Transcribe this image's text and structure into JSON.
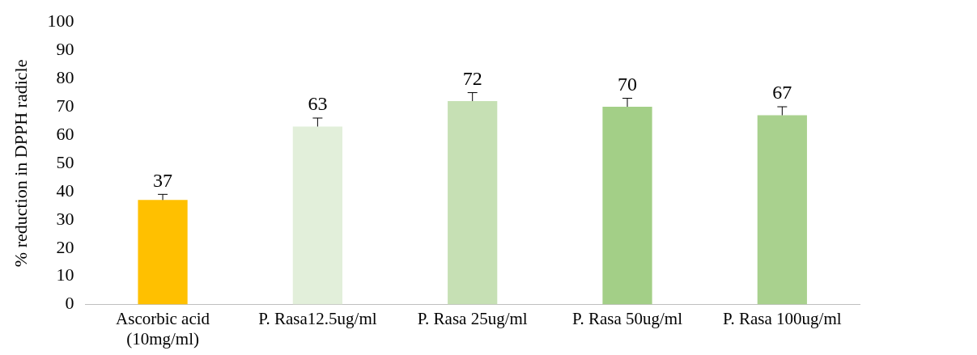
{
  "chart_data": {
    "type": "bar",
    "ylabel": "% reduction in DPPH radicle",
    "categories": [
      "Ascorbic acid (10mg/ml)",
      "P. Rasa12.5ug/ml",
      "P. Rasa 25ug/ml",
      "P. Rasa 50ug/ml",
      "P. Rasa 100ug/ml"
    ],
    "values": [
      37,
      63,
      72,
      70,
      67
    ],
    "colors": [
      "#ffc000",
      "#e2efda",
      "#c6e0b4",
      "#a3cf87",
      "#a9d18e"
    ],
    "errors": [
      [
        37,
        39
      ],
      [
        63,
        66
      ],
      [
        72,
        75
      ],
      [
        70,
        73
      ],
      [
        67,
        70
      ]
    ],
    "ylim": [
      0,
      100
    ],
    "yticks": [
      0,
      10,
      20,
      30,
      40,
      50,
      60,
      70,
      80,
      90,
      100
    ],
    "grid": false,
    "legend": false,
    "data_labels": true
  }
}
